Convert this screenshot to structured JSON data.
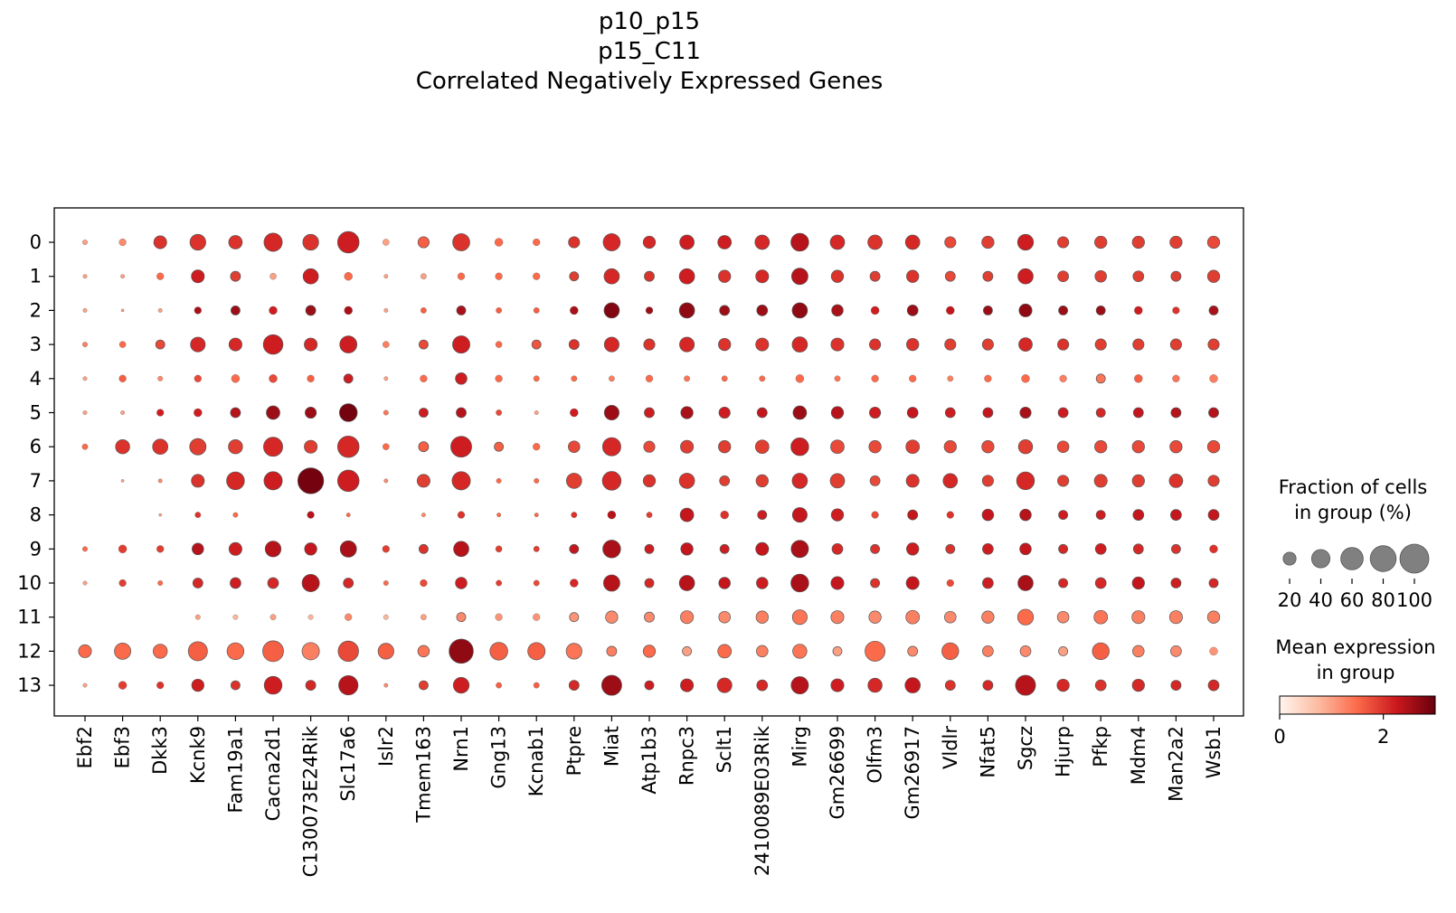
{
  "title": [
    "p10_p15",
    "p15_C11",
    "Correlated Negatively Expressed Genes"
  ],
  "chart_data": {
    "type": "dotplot",
    "genes": [
      "Ebf2",
      "Ebf3",
      "Dkk3",
      "Kcnk9",
      "Fam19a1",
      "Cacna2d1",
      "C130073E24Rik",
      "Slc17a6",
      "Islr2",
      "Tmem163",
      "Nrn1",
      "Gng13",
      "Kcnab1",
      "Ptpre",
      "Miat",
      "Atp1b3",
      "Rnpc3",
      "Sclt1",
      "2410089E03Rik",
      "Mirg",
      "Gm26699",
      "Olfm3",
      "Gm26917",
      "Vldlr",
      "Nfat5",
      "Sgcz",
      "Hjurp",
      "Pfkp",
      "Mdm4",
      "Man2a2",
      "Wsb1"
    ],
    "groups": [
      "0",
      "1",
      "2",
      "3",
      "4",
      "5",
      "6",
      "7",
      "8",
      "9",
      "10",
      "11",
      "12",
      "13"
    ],
    "fraction_pct": [
      [
        3,
        6,
        20,
        30,
        22,
        40,
        30,
        55,
        5,
        15,
        35,
        8,
        6,
        15,
        35,
        18,
        25,
        22,
        25,
        38,
        25,
        25,
        25,
        15,
        18,
        30,
        15,
        18,
        18,
        18,
        18
      ],
      [
        2,
        2,
        6,
        20,
        12,
        5,
        28,
        8,
        2,
        4,
        6,
        6,
        6,
        10,
        28,
        12,
        28,
        18,
        20,
        32,
        18,
        12,
        18,
        12,
        12,
        28,
        14,
        16,
        14,
        12,
        18
      ],
      [
        2,
        1,
        2,
        6,
        10,
        8,
        12,
        8,
        2,
        4,
        10,
        4,
        4,
        8,
        28,
        6,
        28,
        12,
        14,
        28,
        16,
        8,
        14,
        8,
        10,
        20,
        10,
        10,
        8,
        6,
        10
      ],
      [
        3,
        5,
        10,
        26,
        20,
        46,
        20,
        35,
        5,
        10,
        36,
        5,
        10,
        12,
        26,
        15,
        26,
        18,
        20,
        28,
        20,
        15,
        18,
        15,
        15,
        22,
        15,
        15,
        15,
        15,
        15
      ],
      [
        2,
        6,
        3,
        6,
        8,
        8,
        6,
        10,
        2,
        6,
        16,
        6,
        4,
        4,
        4,
        6,
        4,
        4,
        4,
        8,
        4,
        6,
        6,
        4,
        6,
        8,
        6,
        10,
        8,
        6,
        8
      ],
      [
        2,
        2,
        6,
        8,
        12,
        22,
        15,
        38,
        3,
        10,
        12,
        4,
        2,
        8,
        26,
        12,
        18,
        15,
        12,
        22,
        18,
        15,
        14,
        12,
        12,
        15,
        12,
        10,
        12,
        12,
        12
      ],
      [
        4,
        24,
        28,
        32,
        24,
        44,
        20,
        55,
        5,
        12,
        52,
        10,
        6,
        16,
        40,
        15,
        20,
        18,
        22,
        38,
        22,
        18,
        22,
        18,
        18,
        24,
        16,
        18,
        18,
        18,
        18
      ],
      [
        0,
        1,
        2,
        20,
        38,
        40,
        80,
        55,
        2,
        20,
        40,
        3,
        3,
        28,
        42,
        18,
        28,
        12,
        18,
        28,
        25,
        12,
        20,
        25,
        15,
        38,
        15,
        20,
        18,
        22,
        15
      ],
      [
        0,
        0,
        1,
        4,
        3,
        0,
        6,
        2,
        0,
        2,
        6,
        2,
        2,
        4,
        8,
        4,
        22,
        8,
        10,
        26,
        18,
        6,
        12,
        6,
        16,
        16,
        10,
        10,
        14,
        14,
        14
      ],
      [
        3,
        8,
        6,
        16,
        20,
        30,
        18,
        32,
        6,
        10,
        28,
        5,
        4,
        10,
        38,
        10,
        18,
        10,
        20,
        36,
        14,
        10,
        18,
        10,
        14,
        16,
        10,
        14,
        12,
        10,
        8
      ],
      [
        2,
        6,
        3,
        12,
        14,
        14,
        36,
        12,
        3,
        6,
        16,
        4,
        4,
        8,
        32,
        10,
        28,
        16,
        16,
        38,
        20,
        10,
        20,
        6,
        14,
        28,
        10,
        14,
        18,
        12,
        10
      ],
      [
        0,
        0,
        0,
        3,
        3,
        4,
        3,
        6,
        3,
        4,
        10,
        6,
        6,
        10,
        18,
        12,
        20,
        16,
        18,
        26,
        20,
        18,
        22,
        16,
        18,
        30,
        16,
        22,
        20,
        20,
        18
      ],
      [
        20,
        32,
        24,
        44,
        34,
        52,
        36,
        50,
        30,
        16,
        70,
        38,
        36,
        30,
        12,
        18,
        10,
        22,
        16,
        24,
        10,
        48,
        12,
        34,
        14,
        14,
        10,
        34,
        16,
        14,
        8
      ],
      [
        2,
        8,
        6,
        18,
        10,
        38,
        12,
        45,
        2,
        10,
        30,
        4,
        4,
        12,
        48,
        10,
        20,
        26,
        14,
        36,
        20,
        24,
        28,
        12,
        12,
        48,
        18,
        14,
        18,
        12,
        14
      ]
    ],
    "mean_expression": [
      [
        1,
        1.2,
        2,
        2,
        2,
        2.1,
        2,
        2.2,
        1,
        1.6,
        2,
        1.5,
        1.5,
        2,
        2.1,
        2.1,
        2.2,
        2.2,
        2.1,
        2.4,
        2.1,
        2,
        2.1,
        1.8,
        1.9,
        2.2,
        1.9,
        1.9,
        1.9,
        1.9,
        1.8
      ],
      [
        1,
        1,
        1.5,
        2.2,
        1.9,
        1,
        2.2,
        1.5,
        1,
        1,
        1.5,
        1.5,
        1.5,
        1.9,
        2.1,
        2,
        2.2,
        2,
        2.1,
        2.4,
        2,
        1.9,
        2,
        1.8,
        1.9,
        2.2,
        1.9,
        1.9,
        1.9,
        1.9,
        1.9
      ],
      [
        1,
        1,
        1,
        2.5,
        2.6,
        2.2,
        2.6,
        2.5,
        1,
        1.6,
        2.5,
        1.6,
        1.6,
        2.5,
        2.8,
        2.6,
        2.7,
        2.6,
        2.6,
        2.7,
        2.5,
        2.2,
        2.6,
        2.3,
        2.6,
        2.7,
        2.6,
        2.6,
        2.2,
        2,
        2.5
      ],
      [
        1.3,
        1.5,
        1.8,
        2.1,
        2.1,
        2.2,
        2.1,
        2.2,
        1.3,
        1.8,
        2.2,
        1.5,
        1.7,
        2,
        2.1,
        2,
        2.1,
        2,
        2,
        2.1,
        2,
        2,
        2,
        1.9,
        1.9,
        2.1,
        2,
        1.9,
        1.9,
        1.9,
        1.9
      ],
      [
        1,
        1.6,
        1.2,
        1.8,
        1.5,
        1.8,
        1.6,
        2.2,
        1,
        1.5,
        2.2,
        1.5,
        1.5,
        1.5,
        1.3,
        1.5,
        1.4,
        1.5,
        1.5,
        1.5,
        1.4,
        1.5,
        1.5,
        1.3,
        1.5,
        1.5,
        1.3,
        1.4,
        1.6,
        1.4,
        1.3
      ],
      [
        1,
        1,
        2.2,
        2.2,
        2.4,
        2.6,
        2.6,
        2.9,
        1.4,
        2.2,
        2.4,
        1.8,
        1,
        2.2,
        2.6,
        2.2,
        2.5,
        2.2,
        2.3,
        2.6,
        2.4,
        2.2,
        2.3,
        2.2,
        2.3,
        2.5,
        2.2,
        2.1,
        2.3,
        2.4,
        2.4
      ],
      [
        1.5,
        2,
        2,
        1.9,
        1.9,
        2.1,
        1.9,
        2.1,
        1.5,
        1.6,
        2.2,
        1.6,
        1.5,
        1.8,
        2.1,
        1.8,
        1.9,
        1.9,
        1.9,
        2.2,
        1.8,
        1.8,
        1.9,
        1.8,
        1.8,
        1.9,
        1.8,
        1.8,
        1.8,
        1.8,
        1.8
      ],
      [
        0,
        1,
        1.2,
        2,
        2.1,
        2.2,
        2.9,
        2.2,
        1.2,
        1.9,
        2.1,
        1.5,
        1.5,
        1.9,
        2.1,
        2,
        2,
        1.9,
        1.9,
        2.1,
        1.9,
        1.8,
        2,
        2.1,
        1.9,
        2.1,
        1.9,
        1.9,
        1.9,
        2,
        1.9
      ],
      [
        0,
        0,
        1,
        2,
        1.5,
        0,
        2.4,
        1.5,
        0,
        1.2,
        2,
        1.5,
        1.5,
        2,
        2.4,
        1.9,
        2.3,
        2,
        2.2,
        2.3,
        2.2,
        1.8,
        2.3,
        2,
        2.3,
        2.4,
        2.2,
        2.2,
        2.3,
        2.3,
        2.3
      ],
      [
        1.5,
        1.9,
        1.9,
        2.4,
        2.2,
        2.4,
        2.3,
        2.5,
        1.9,
        2,
        2.4,
        1.9,
        1.9,
        2.3,
        2.5,
        2.2,
        2.3,
        2.2,
        2.3,
        2.5,
        2.1,
        2,
        2.2,
        2,
        2.2,
        2.3,
        2.1,
        2.2,
        2.1,
        2,
        2
      ],
      [
        1,
        1.9,
        1.5,
        2.1,
        2.2,
        2.1,
        2.4,
        2.1,
        1.5,
        1.8,
        2.2,
        1.9,
        1.8,
        2.1,
        2.4,
        2.1,
        2.4,
        2.3,
        2.2,
        2.5,
        2.3,
        2,
        2.3,
        1.8,
        2.2,
        2.5,
        2.1,
        2.1,
        2.3,
        2.2,
        2.1
      ],
      [
        0,
        0,
        0,
        1,
        0.8,
        1,
        0.8,
        1.2,
        0.8,
        1,
        1.2,
        1.1,
        1.1,
        1.1,
        1.2,
        1.2,
        1.3,
        1.2,
        1.3,
        1.4,
        1.3,
        1.2,
        1.3,
        1.2,
        1.3,
        1.5,
        1.2,
        1.4,
        1.3,
        1.3,
        1.3
      ],
      [
        1.5,
        1.5,
        1.5,
        1.6,
        1.5,
        1.6,
        1.3,
        1.8,
        1.6,
        1.4,
        2.7,
        1.6,
        1.6,
        1.4,
        1.3,
        1.5,
        1,
        1.5,
        1.3,
        1.4,
        1,
        1.5,
        1.2,
        1.6,
        1.3,
        1.2,
        1,
        1.6,
        1.3,
        1.2,
        1.1
      ],
      [
        1,
        1.9,
        2,
        2.2,
        2,
        2.2,
        2.1,
        2.4,
        1.2,
        1.9,
        2.2,
        1.6,
        1.6,
        2.1,
        2.6,
        2.2,
        2.2,
        2.1,
        2.1,
        2.4,
        2.2,
        2.1,
        2.3,
        2,
        2.1,
        2.4,
        2.1,
        2,
        2.1,
        2.1,
        2.1
      ]
    ],
    "size_legend": {
      "title": "Fraction of cells\nin group (%)",
      "values": [
        20,
        40,
        60,
        80,
        100
      ],
      "labels": [
        "20",
        "40",
        "60",
        "80",
        "100"
      ]
    },
    "color_legend": {
      "title": "Mean expression\nin group",
      "range": [
        0,
        3
      ],
      "ticks": [
        0,
        2
      ],
      "tick_labels": [
        "0",
        "2"
      ],
      "colormap": "Reds"
    }
  }
}
